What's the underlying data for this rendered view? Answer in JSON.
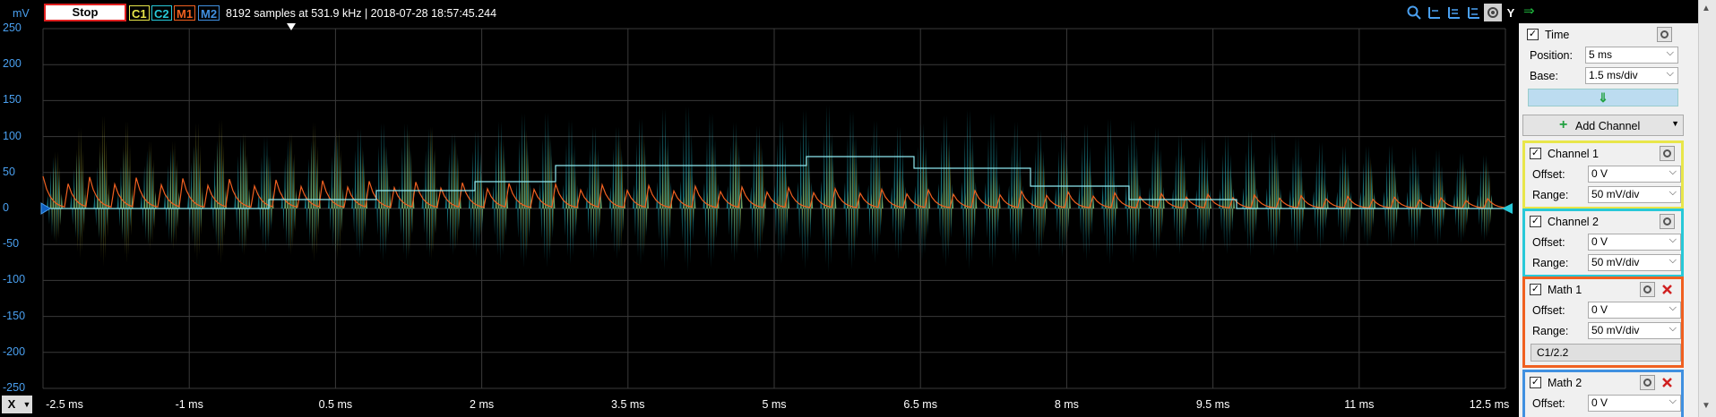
{
  "toolbar": {
    "stop_label": "Stop",
    "tags": {
      "c1": "C1",
      "c2": "C2",
      "m1": "M1",
      "m2": "M2"
    },
    "acquisition_info": "8192 samples at 531.9 kHz | 2018-07-28 18:57:45.244",
    "y_mode_label": "Y",
    "icons": [
      "zoom-icon",
      "cursor-1-icon",
      "cursor-2-icon",
      "cursor-3-icon",
      "settings-icon"
    ]
  },
  "y_axis": {
    "unit": "mV",
    "ticks": [
      "250",
      "200",
      "150",
      "100",
      "50",
      "0",
      "-50",
      "-100",
      "-150",
      "-200",
      "-250"
    ]
  },
  "x_axis": {
    "button_label": "X",
    "ticks": [
      "-2.5 ms",
      "-1 ms",
      "0.5 ms",
      "2 ms",
      "3.5 ms",
      "5 ms",
      "6.5 ms",
      "8 ms",
      "9.5 ms",
      "11 ms",
      "12.5 ms"
    ]
  },
  "colors": {
    "c1": "#e8e64a",
    "c2": "#28c8d8",
    "m1": "#f06020",
    "m2": "#4090e0",
    "axis_text": "#4aa0f0",
    "grid": "#3a3a3a"
  },
  "panel": {
    "time": {
      "title": "Time",
      "position_label": "Position:",
      "position_value": "5 ms",
      "base_label": "Base:",
      "base_value": "1.5 ms/div"
    },
    "add_channel_label": "Add Channel",
    "channel1": {
      "title": "Channel 1",
      "offset_label": "Offset:",
      "offset_value": "0 V",
      "range_label": "Range:",
      "range_value": "50 mV/div"
    },
    "channel2": {
      "title": "Channel 2",
      "offset_label": "Offset:",
      "offset_value": "0 V",
      "range_label": "Range:",
      "range_value": "50 mV/div"
    },
    "math1": {
      "title": "Math 1",
      "offset_label": "Offset:",
      "offset_value": "0 V",
      "range_label": "Range:",
      "range_value": "50 mV/div",
      "formula": "C1/2.2"
    },
    "math2": {
      "title": "Math 2",
      "offset_label": "Offset:",
      "offset_value": "0 V"
    }
  }
}
